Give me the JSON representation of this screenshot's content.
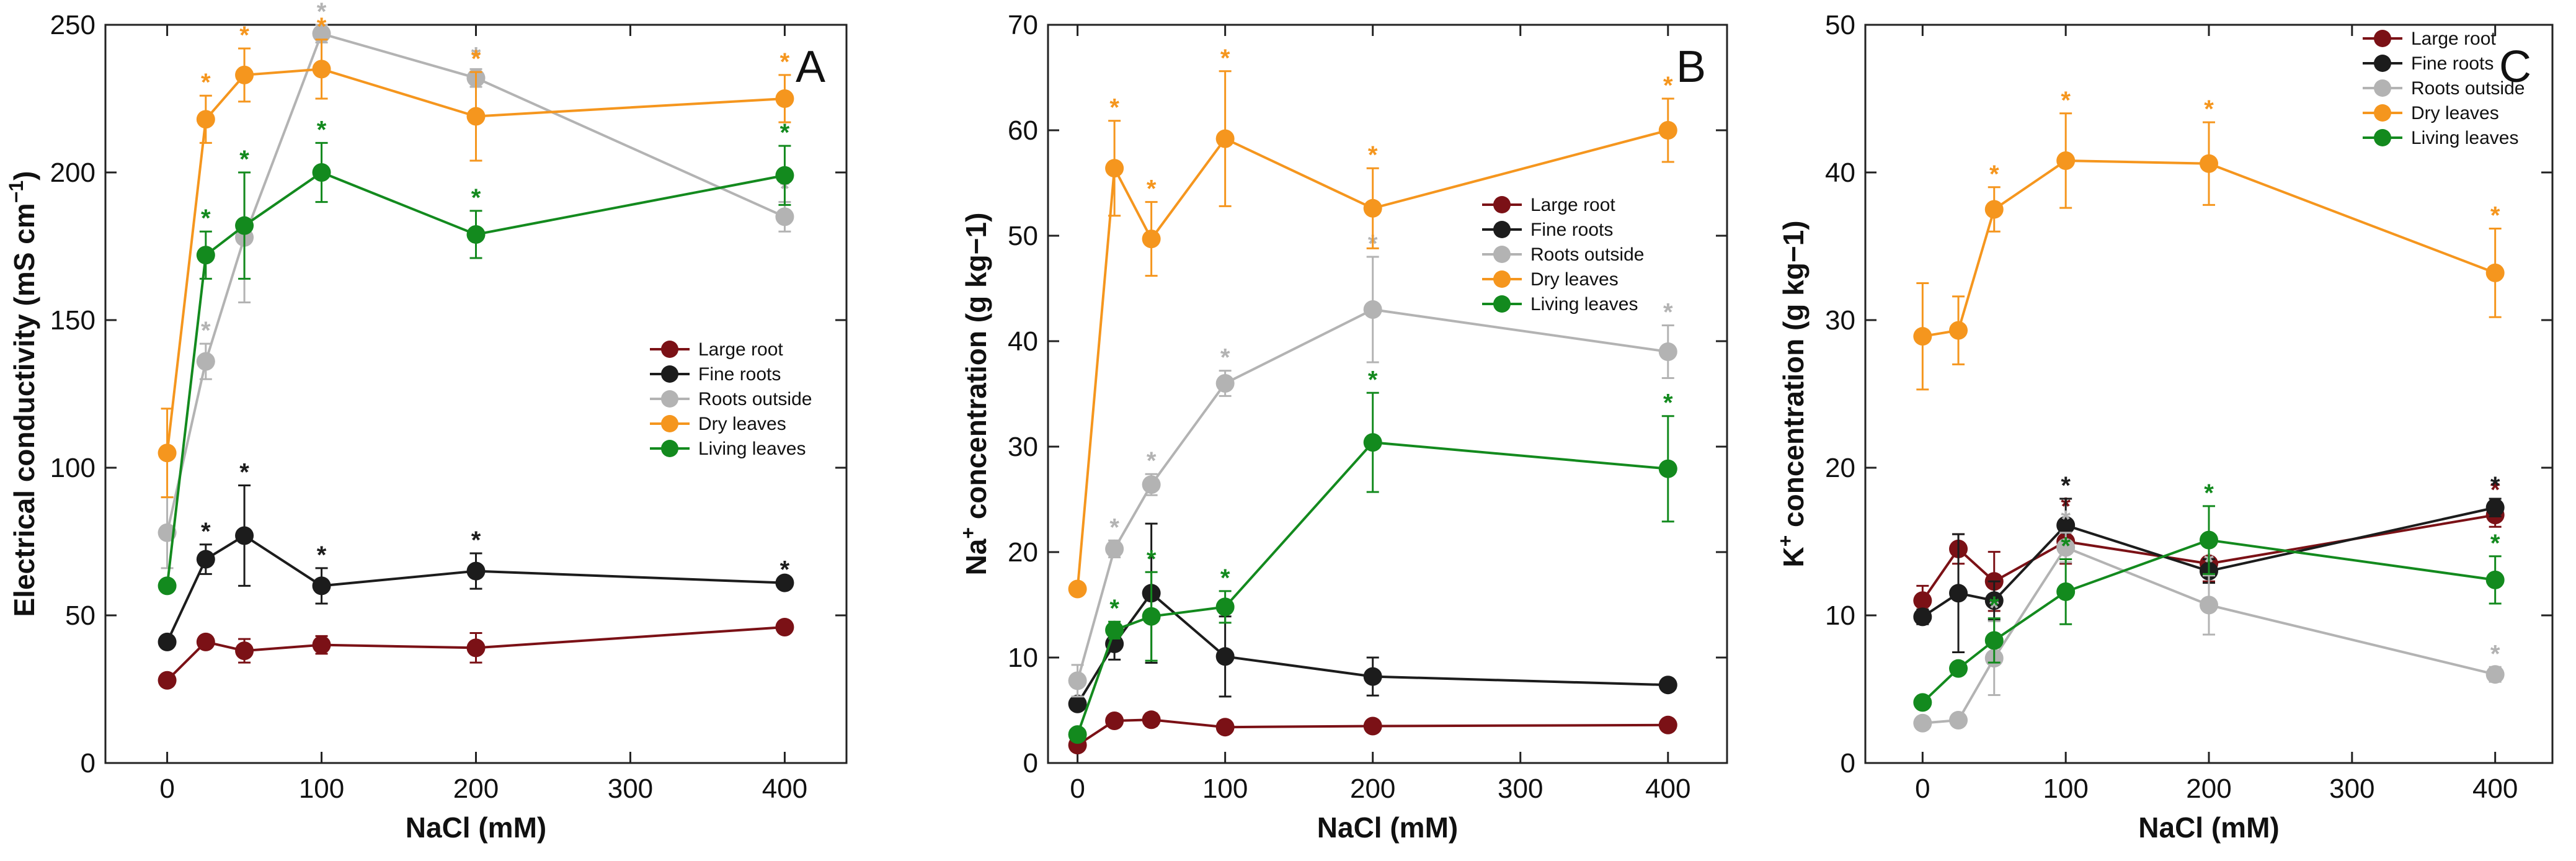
{
  "chart_data": [
    {
      "type": "line",
      "panel_label": "A",
      "xlabel": "NaCl (mM)",
      "ylabel_main": "Electrical conductivity (mS cm",
      "ylabel_sup": "−1",
      "ylabel_tail": ")",
      "xlim": [
        -40,
        440
      ],
      "ylim": [
        0,
        250
      ],
      "xticks": [
        0,
        100,
        200,
        300,
        400
      ],
      "yticks": [
        0,
        50,
        100,
        150,
        200,
        250
      ],
      "xtick_labels": [
        "0",
        "100",
        "200",
        "300",
        "400"
      ],
      "ytick_labels": [
        "0",
        "50",
        "100",
        "150",
        "200",
        "250"
      ],
      "legend_position": "right-middle",
      "x": [
        0,
        25,
        50,
        100,
        200,
        400
      ],
      "series": [
        {
          "name": "Large root",
          "color": "#7b1116",
          "values": [
            28,
            41,
            38,
            40,
            39,
            46
          ],
          "errors": [
            0,
            2,
            4,
            3,
            5,
            0
          ],
          "sig": [
            null,
            null,
            null,
            null,
            null,
            null
          ]
        },
        {
          "name": "Fine roots",
          "color": "#1c1c1c",
          "values": [
            41,
            69,
            77,
            60,
            65,
            61
          ],
          "errors": [
            0,
            5,
            17,
            6,
            6,
            0
          ],
          "sig": [
            null,
            "*",
            "*",
            "*",
            "*",
            "*"
          ]
        },
        {
          "name": "Roots outside",
          "color": "#b3b3b3",
          "values": [
            78,
            136,
            178,
            247,
            232,
            185
          ],
          "errors": [
            12,
            6,
            22,
            3,
            3,
            5
          ],
          "sig": [
            null,
            "*",
            "*",
            "*",
            "*",
            "*"
          ]
        },
        {
          "name": "Dry leaves",
          "color": "#f5961e",
          "values": [
            105,
            218,
            233,
            235,
            219,
            225
          ],
          "errors": [
            15,
            8,
            9,
            10,
            15,
            8
          ],
          "sig": [
            null,
            "*",
            "*",
            "*",
            "*",
            "*"
          ]
        },
        {
          "name": "Living leaves",
          "color": "#138a1e",
          "values": [
            60,
            172,
            182,
            200,
            179,
            199
          ],
          "errors": [
            0,
            8,
            18,
            10,
            8,
            10
          ],
          "sig": [
            null,
            "*",
            "*",
            "*",
            "*",
            "*"
          ]
        }
      ]
    },
    {
      "type": "line",
      "panel_label": "B",
      "xlabel": "NaCl (mM)",
      "ylabel_main": "Na",
      "ylabel_sup": "+",
      "ylabel_tail": " concentration (g kg−1)",
      "xlim": [
        -20,
        440
      ],
      "ylim": [
        0,
        70
      ],
      "xticks": [
        0,
        100,
        200,
        300,
        400
      ],
      "yticks": [
        0,
        10,
        20,
        30,
        40,
        50,
        60,
        70
      ],
      "xtick_labels": [
        "0",
        "100",
        "200",
        "300",
        "400"
      ],
      "ytick_labels": [
        "0",
        "10",
        "20",
        "30",
        "40",
        "50",
        "60",
        "70"
      ],
      "legend_position": "right-middle",
      "x": [
        0,
        25,
        50,
        100,
        200,
        400
      ],
      "series": [
        {
          "name": "Large root",
          "color": "#7b1116",
          "values": [
            1.7,
            4.0,
            4.1,
            3.4,
            3.5,
            3.6
          ],
          "errors": [
            0,
            0.4,
            0.6,
            0.3,
            0.5,
            0
          ],
          "sig": [
            null,
            null,
            null,
            null,
            null,
            null
          ]
        },
        {
          "name": "Fine roots",
          "color": "#1c1c1c",
          "values": [
            5.6,
            11.3,
            16.1,
            10.1,
            8.2,
            7.4
          ],
          "errors": [
            0,
            1.5,
            6.6,
            3.8,
            1.8,
            0
          ],
          "sig": [
            null,
            null,
            null,
            null,
            null,
            null
          ]
        },
        {
          "name": "Roots outside",
          "color": "#b3b3b3",
          "values": [
            7.8,
            20.3,
            26.4,
            36.0,
            43.0,
            39.0
          ],
          "errors": [
            1.5,
            0.8,
            1.0,
            1.2,
            5.0,
            2.5
          ],
          "sig": [
            null,
            "*",
            "*",
            "*",
            "*",
            "*"
          ]
        },
        {
          "name": "Dry leaves",
          "color": "#f5961e",
          "values": [
            16.5,
            56.4,
            49.7,
            59.2,
            52.6,
            60.0
          ],
          "errors": [
            0,
            4.5,
            3.5,
            6.4,
            3.8,
            3.0
          ],
          "sig": [
            null,
            "*",
            "*",
            "*",
            "*",
            "*"
          ]
        },
        {
          "name": "Living leaves",
          "color": "#138a1e",
          "values": [
            2.7,
            12.6,
            13.9,
            14.8,
            30.4,
            27.9
          ],
          "errors": [
            0,
            0.8,
            4.2,
            1.5,
            4.7,
            5.0
          ],
          "sig": [
            null,
            "*",
            "*",
            "*",
            "*",
            "*"
          ]
        }
      ]
    },
    {
      "type": "line",
      "panel_label": "C",
      "xlabel": "NaCl (mM)",
      "ylabel_main": "K",
      "ylabel_sup": "+",
      "ylabel_tail": " concentration (g kg−1)",
      "xlim": [
        -40,
        440
      ],
      "ylim": [
        0,
        50
      ],
      "xticks": [
        0,
        100,
        200,
        300,
        400
      ],
      "yticks": [
        0,
        10,
        20,
        30,
        40,
        50
      ],
      "xtick_labels": [
        "0",
        "100",
        "200",
        "300",
        "400"
      ],
      "ytick_labels": [
        "0",
        "10",
        "20",
        "30",
        "40",
        "50"
      ],
      "legend_position": "top-right",
      "x": [
        0,
        25,
        50,
        100,
        200,
        400
      ],
      "series": [
        {
          "name": "Large root",
          "color": "#7b1116",
          "values": [
            11.0,
            14.5,
            12.3,
            15.0,
            13.5,
            16.8
          ],
          "errors": [
            1.0,
            1.0,
            2.0,
            1.5,
            1.2,
            0.8
          ],
          "sig": [
            null,
            null,
            null,
            "*",
            null,
            "*"
          ]
        },
        {
          "name": "Fine roots",
          "color": "#1c1c1c",
          "values": [
            9.9,
            11.5,
            11.0,
            16.1,
            13.0,
            17.3
          ],
          "errors": [
            0.5,
            4.0,
            1.3,
            1.8,
            0.8,
            0.6
          ],
          "sig": [
            null,
            null,
            null,
            "*",
            null,
            "*"
          ]
        },
        {
          "name": "Roots outside",
          "color": "#b3b3b3",
          "values": [
            2.7,
            2.9,
            7.1,
            14.6,
            10.7,
            6.0
          ],
          "errors": [
            0,
            0,
            2.5,
            1.0,
            2.0,
            0.5
          ],
          "sig": [
            null,
            null,
            "*",
            "*",
            "*",
            "*"
          ]
        },
        {
          "name": "Dry leaves",
          "color": "#f5961e",
          "values": [
            28.9,
            29.3,
            37.5,
            40.8,
            40.6,
            33.2
          ],
          "errors": [
            3.6,
            2.3,
            1.5,
            3.2,
            2.8,
            3.0
          ],
          "sig": [
            null,
            null,
            "*",
            "*",
            "*",
            "*"
          ]
        },
        {
          "name": "Living leaves",
          "color": "#138a1e",
          "values": [
            4.1,
            6.4,
            8.3,
            11.6,
            15.1,
            12.4
          ],
          "errors": [
            0,
            0,
            1.5,
            2.2,
            2.3,
            1.6
          ],
          "sig": [
            null,
            null,
            "*",
            "*",
            "*",
            "*"
          ]
        }
      ]
    }
  ]
}
